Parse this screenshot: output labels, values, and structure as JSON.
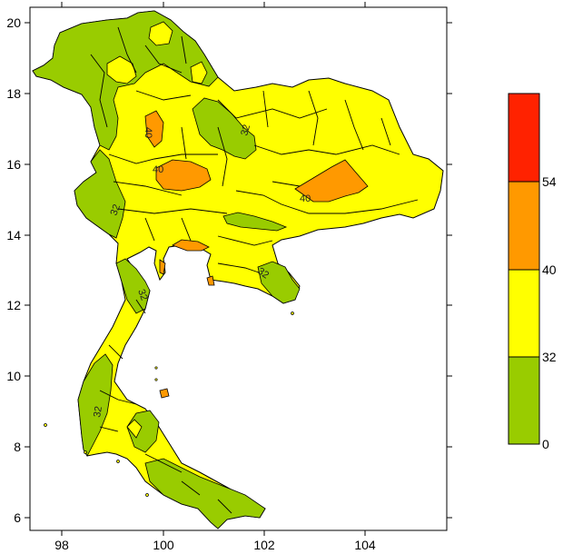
{
  "map": {
    "x_axis": {
      "range": [
        97.5,
        105.6
      ],
      "ticks": [
        "98",
        "100",
        "102",
        "104"
      ]
    },
    "y_axis": {
      "range": [
        5.7,
        20.4
      ],
      "ticks": [
        "6",
        "8",
        "10",
        "12",
        "14",
        "16",
        "18",
        "20"
      ]
    },
    "contour_labels": [
      "40",
      "40",
      "40",
      "32",
      "32",
      "32",
      "32",
      "32"
    ]
  },
  "legend": {
    "bins": [
      {
        "label": "0",
        "color": "#99cc00"
      },
      {
        "label": "32",
        "color": "#ffff00"
      },
      {
        "label": "40",
        "color": "#ff9900"
      },
      {
        "label": "54",
        "color": "#ff2200"
      }
    ]
  },
  "colors": {
    "green": "#99cc00",
    "yellow": "#ffff00",
    "orange": "#ff9900",
    "red": "#ff2200"
  }
}
